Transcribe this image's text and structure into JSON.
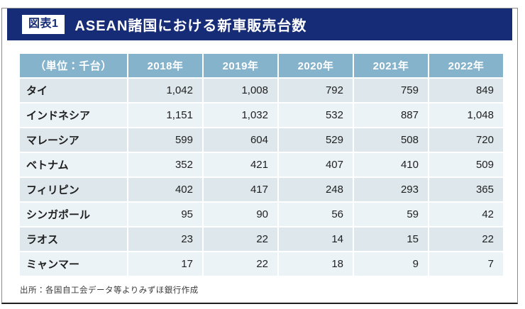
{
  "header": {
    "badge": "図表1",
    "title": "ASEAN諸国における新車販売台数"
  },
  "table": {
    "unit_label": "（単位：千台）",
    "year_headers": [
      "2018年",
      "2019年",
      "2020年",
      "2021年",
      "2022年"
    ],
    "rows": [
      {
        "country": "タイ",
        "values": [
          "1,042",
          "1,008",
          "792",
          "759",
          "849"
        ]
      },
      {
        "country": "インドネシア",
        "values": [
          "1,151",
          "1,032",
          "532",
          "887",
          "1,048"
        ]
      },
      {
        "country": "マレーシア",
        "values": [
          "599",
          "604",
          "529",
          "508",
          "720"
        ]
      },
      {
        "country": "ベトナム",
        "values": [
          "352",
          "421",
          "407",
          "410",
          "509"
        ]
      },
      {
        "country": "フィリピン",
        "values": [
          "402",
          "417",
          "248",
          "293",
          "365"
        ]
      },
      {
        "country": "シンガポール",
        "values": [
          "95",
          "90",
          "56",
          "59",
          "42"
        ]
      },
      {
        "country": "ラオス",
        "values": [
          "23",
          "22",
          "14",
          "15",
          "22"
        ]
      },
      {
        "country": "ミャンマー",
        "values": [
          "17",
          "22",
          "18",
          "9",
          "7"
        ]
      }
    ]
  },
  "footer": {
    "source": "出所：各国自工会データ等よりみずほ銀行作成"
  },
  "colors": {
    "navy_bar": "#172c76",
    "header_blue": "#86b3cc",
    "row_odd": "#dde7ec",
    "row_even": "#ecf3f7"
  },
  "chart_data": {
    "type": "table",
    "title": "ASEAN諸国における新車販売台数",
    "figure_label": "図表1",
    "unit": "千台",
    "categories": [
      "2018年",
      "2019年",
      "2020年",
      "2021年",
      "2022年"
    ],
    "series": [
      {
        "name": "タイ",
        "values": [
          1042,
          1008,
          792,
          759,
          849
        ]
      },
      {
        "name": "インドネシア",
        "values": [
          1151,
          1032,
          532,
          887,
          1048
        ]
      },
      {
        "name": "マレーシア",
        "values": [
          599,
          604,
          529,
          508,
          720
        ]
      },
      {
        "name": "ベトナム",
        "values": [
          352,
          421,
          407,
          410,
          509
        ]
      },
      {
        "name": "フィリピン",
        "values": [
          402,
          417,
          248,
          293,
          365
        ]
      },
      {
        "name": "シンガポール",
        "values": [
          95,
          90,
          56,
          59,
          42
        ]
      },
      {
        "name": "ラオス",
        "values": [
          23,
          22,
          14,
          15,
          22
        ]
      },
      {
        "name": "ミャンマー",
        "values": [
          17,
          22,
          18,
          9,
          7
        ]
      }
    ],
    "source": "出所：各国自工会データ等よりみずほ銀行作成"
  }
}
